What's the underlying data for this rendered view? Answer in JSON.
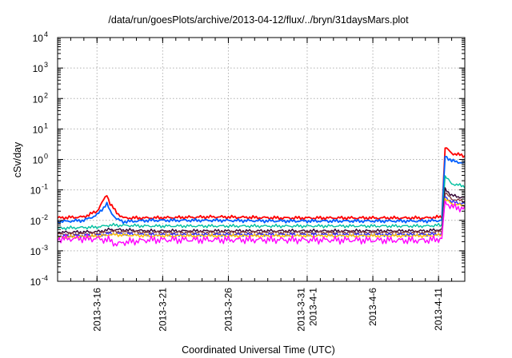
{
  "chart_data": {
    "type": "line",
    "title": "/data/run/goesPlots/archive/2013-04-12/flux/../bryn/31daysMars.plot",
    "xlabel": "Coordinated Universal Time (UTC)",
    "ylabel": "cSv/day",
    "yscale": "log",
    "ylim": [
      0.0001,
      10000
    ],
    "xlim": [
      "2013-03-13",
      "2013-04-13"
    ],
    "grid": true,
    "legend": "none",
    "y_ticks": [
      {
        "base": "10",
        "exp": "-4"
      },
      {
        "base": "10",
        "exp": "-3"
      },
      {
        "base": "10",
        "exp": "-2"
      },
      {
        "base": "10",
        "exp": "-1"
      },
      {
        "base": "10",
        "exp": "0"
      },
      {
        "base": "10",
        "exp": "1"
      },
      {
        "base": "10",
        "exp": "2"
      },
      {
        "base": "10",
        "exp": "3"
      },
      {
        "base": "10",
        "exp": "4"
      }
    ],
    "x_ticks": [
      {
        "date": "2013-03-16",
        "lines": [
          "2013-3-16"
        ]
      },
      {
        "date": "2013-03-21",
        "lines": [
          "2013-3-21"
        ]
      },
      {
        "date": "2013-03-26",
        "lines": [
          "2013-3-26"
        ]
      },
      {
        "date": "2013-04-01",
        "lines": [
          "2013-3-31",
          "2013-4-1"
        ]
      },
      {
        "date": "2013-04-06",
        "lines": [
          "2013-4-6"
        ]
      },
      {
        "date": "2013-04-11",
        "lines": [
          "2013-4-11"
        ]
      }
    ],
    "series": [
      {
        "color": "#ff0000",
        "x": [
          "2013-03-13",
          "2013-03-15",
          "2013-03-16",
          "2013-03-16T18:00",
          "2013-03-17",
          "2013-03-17T12:00",
          "2013-03-18",
          "2013-03-20",
          "2013-03-25",
          "2013-03-30",
          "2013-04-04",
          "2013-04-10",
          "2013-04-11T06:00",
          "2013-04-11T12:00",
          "2013-04-12",
          "2013-04-13"
        ],
        "y": [
          0.012,
          0.013,
          0.02,
          0.07,
          0.035,
          0.018,
          0.012,
          0.012,
          0.013,
          0.012,
          0.012,
          0.012,
          0.013,
          2.5,
          1.6,
          1.3
        ]
      },
      {
        "color": "#0060ff",
        "x": [
          "2013-03-13",
          "2013-03-15",
          "2013-03-16",
          "2013-03-16T18:00",
          "2013-03-17",
          "2013-03-17T12:00",
          "2013-03-18",
          "2013-03-20",
          "2013-03-25",
          "2013-03-30",
          "2013-04-04",
          "2013-04-10",
          "2013-04-11T06:00",
          "2013-04-11T12:00",
          "2013-04-12",
          "2013-04-13"
        ],
        "y": [
          0.009,
          0.01,
          0.015,
          0.035,
          0.02,
          0.011,
          0.009,
          0.01,
          0.01,
          0.0095,
          0.0095,
          0.0095,
          0.01,
          1.3,
          0.9,
          0.75
        ]
      },
      {
        "color": "#00c0a0",
        "x": [
          "2013-03-13",
          "2013-03-16",
          "2013-03-17",
          "2013-03-20",
          "2013-03-30",
          "2013-04-10",
          "2013-04-11T06:00",
          "2013-04-11T12:00",
          "2013-04-12",
          "2013-04-13"
        ],
        "y": [
          0.0055,
          0.006,
          0.007,
          0.0065,
          0.0065,
          0.0065,
          0.007,
          0.28,
          0.16,
          0.13
        ]
      },
      {
        "color": "#300030",
        "x": [
          "2013-03-13",
          "2013-03-16",
          "2013-03-17",
          "2013-03-20",
          "2013-03-30",
          "2013-04-10",
          "2013-04-11T06:00",
          "2013-04-11T12:00",
          "2013-04-12",
          "2013-04-13"
        ],
        "y": [
          0.004,
          0.0042,
          0.005,
          0.0045,
          0.0045,
          0.0045,
          0.005,
          0.11,
          0.065,
          0.055
        ]
      },
      {
        "color": "#8a4040",
        "x": [
          "2013-03-13",
          "2013-03-16",
          "2013-03-17",
          "2013-03-20",
          "2013-03-30",
          "2013-04-10",
          "2013-04-11T06:00",
          "2013-04-11T12:00",
          "2013-04-12",
          "2013-04-13"
        ],
        "y": [
          0.0035,
          0.0037,
          0.0043,
          0.004,
          0.004,
          0.004,
          0.0043,
          0.08,
          0.05,
          0.042
        ]
      },
      {
        "color": "#3030ff",
        "x": [
          "2013-03-13",
          "2013-03-16",
          "2013-03-17",
          "2013-03-20",
          "2013-03-30",
          "2013-04-10",
          "2013-04-11T06:00",
          "2013-04-11T12:00",
          "2013-04-12",
          "2013-04-13"
        ],
        "y": [
          0.003,
          0.0032,
          0.0037,
          0.0034,
          0.0034,
          0.0034,
          0.0036,
          0.06,
          0.04,
          0.035
        ]
      },
      {
        "color": "#ffc000",
        "x": [
          "2013-03-13",
          "2013-03-16",
          "2013-03-17",
          "2013-03-20",
          "2013-03-30",
          "2013-04-10",
          "2013-04-11T06:00",
          "2013-04-11T12:00",
          "2013-04-12",
          "2013-04-13"
        ],
        "y": [
          0.0028,
          0.003,
          0.0034,
          0.0031,
          0.0031,
          0.0031,
          0.0033,
          0.05,
          0.035,
          0.03
        ]
      },
      {
        "color": "#ff00ff",
        "x": [
          "2013-03-13",
          "2013-03-16",
          "2013-03-17",
          "2013-03-17T12:00",
          "2013-03-18",
          "2013-03-20",
          "2013-03-30",
          "2013-04-10",
          "2013-04-11T06:00",
          "2013-04-11T12:00",
          "2013-04-12",
          "2013-04-13"
        ],
        "y": [
          0.0025,
          0.0025,
          0.0022,
          0.0016,
          0.0019,
          0.0023,
          0.0023,
          0.0022,
          0.0025,
          0.04,
          0.028,
          0.024
        ]
      }
    ]
  }
}
